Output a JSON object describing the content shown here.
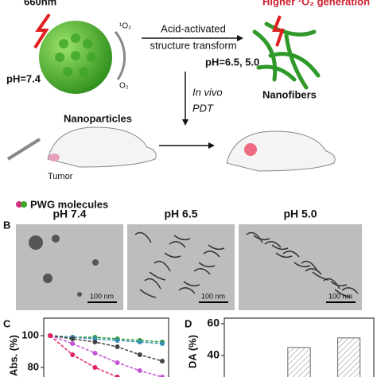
{
  "scheme": {
    "top_label": "660nm",
    "top_right": "Higher ¹O₂ generation",
    "singlet": "¹O₂",
    "oxygen": "O₂",
    "ph_left": "pH=7.4",
    "arrow_line1": "Acid-activated",
    "arrow_line2": "structure transform",
    "ph_right": "pH=6.5, 5.0",
    "left_name": "Nanoparticles",
    "right_name": "Nanofibers",
    "invivo1": "In vivo",
    "invivo2": "PDT",
    "tumor": "Tumor",
    "legend": "PWG molecules"
  },
  "panel_b": {
    "label": "B",
    "images": [
      {
        "title": "pH 7.4",
        "scale": "100 nm"
      },
      {
        "title": "pH 6.5",
        "scale": "100 nm"
      },
      {
        "title": "pH 5.0",
        "scale": "100 nm"
      }
    ]
  },
  "panel_c": {
    "label": "C",
    "chart_data": {
      "type": "line",
      "ylabel": "Abs. (%)",
      "categories": [
        null,
        null,
        null,
        null,
        null,
        null
      ],
      "series": [
        {
          "color": "#2e9e3a",
          "values": [
            100,
            99,
            99,
            98,
            97,
            96
          ]
        },
        {
          "color": "#3a8fb0",
          "values": [
            100,
            99,
            98,
            97,
            96,
            95
          ]
        },
        {
          "color": "#444444",
          "values": [
            100,
            98,
            96,
            93,
            88,
            84
          ]
        },
        {
          "color": "#c455d6",
          "values": [
            100,
            95,
            89,
            83,
            78,
            74
          ]
        },
        {
          "color": "#e0245e",
          "values": [
            100,
            88,
            80,
            74,
            null,
            null
          ]
        }
      ],
      "ylim": [
        74,
        111
      ],
      "yticks": [
        80,
        100
      ]
    }
  },
  "panel_d": {
    "label": "D",
    "chart_data": {
      "type": "bar",
      "ylabel": "DA (%)",
      "categories": [
        null,
        null,
        null
      ],
      "values": [
        null,
        45,
        51
      ],
      "color": "#ffffff",
      "ylim": [
        26.5,
        63.5
      ],
      "yticks": [
        40,
        60
      ]
    }
  }
}
